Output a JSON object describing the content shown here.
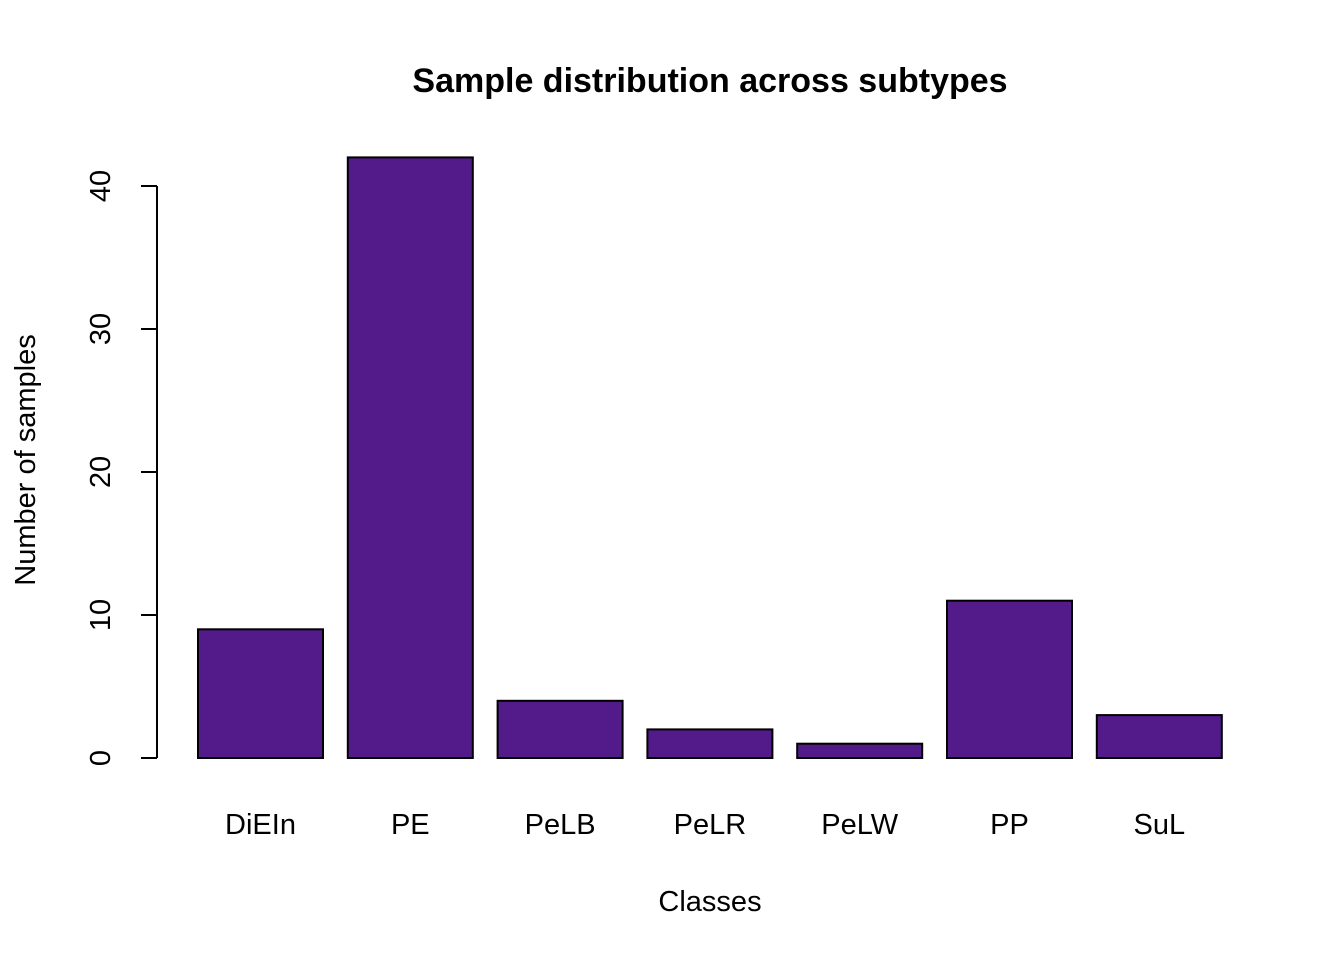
{
  "chart_data": {
    "type": "bar",
    "title": "Sample distribution across subtypes",
    "xlabel": "Classes",
    "ylabel": "Number of samples",
    "categories": [
      "DiEIn",
      "PE",
      "PeLB",
      "PeLR",
      "PeLW",
      "PP",
      "SuL"
    ],
    "values": [
      9,
      42,
      4,
      2,
      1,
      11,
      3
    ],
    "yticks": [
      0,
      10,
      20,
      30,
      40
    ],
    "ylim": [
      0,
      42
    ],
    "bar_color": "#531B8A",
    "grid": false,
    "legend": "none"
  }
}
